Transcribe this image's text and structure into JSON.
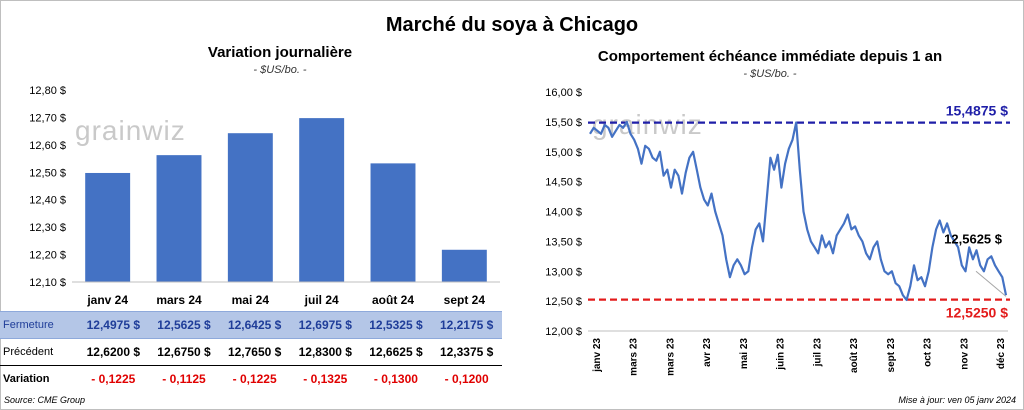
{
  "title": "Marché du soya à Chicago",
  "colors": {
    "bar": "#4472c4",
    "line": "#4472c4",
    "high": "#1f1fa8",
    "low": "#e31b1b"
  },
  "chart_data": [
    {
      "type": "bar",
      "title": "Variation journalière",
      "subtitle": "- $US/bo. -",
      "categories": [
        "janv 24",
        "mars 24",
        "mai 24",
        "juil 24",
        "août 24",
        "sept 24"
      ],
      "values": [
        12.4975,
        12.5625,
        12.6425,
        12.6975,
        12.5325,
        12.2175
      ],
      "ylim": [
        12.1,
        12.8
      ],
      "yticks": [
        "12,10 $",
        "12,20 $",
        "12,30 $",
        "12,40 $",
        "12,50 $",
        "12,60 $",
        "12,70 $",
        "12,80 $"
      ],
      "grid": false,
      "watermark": "grainwiz"
    },
    {
      "type": "line",
      "title": "Comportement  échéance immédiate depuis 1 an",
      "subtitle": "- $US/bo. -",
      "xticks": [
        "janv 23",
        "mars 23",
        "mars 23",
        "avr 23",
        "mai 23",
        "juin 23",
        "juil 23",
        "août 23",
        "sept 23",
        "oct 23",
        "nov 23",
        "déc 23"
      ],
      "ylim": [
        12.0,
        16.0
      ],
      "yticks": [
        "12,00 $",
        "12,50 $",
        "13,00 $",
        "13,50 $",
        "14,00 $",
        "14,50 $",
        "15,00 $",
        "15,50 $",
        "16,00 $"
      ],
      "values": [
        15.3,
        15.4,
        15.35,
        15.3,
        15.45,
        15.4,
        15.25,
        15.35,
        15.45,
        15.4,
        15.5,
        15.3,
        15.2,
        15.05,
        14.8,
        15.1,
        15.05,
        14.9,
        14.85,
        15.0,
        14.6,
        14.7,
        14.4,
        14.7,
        14.6,
        14.3,
        14.65,
        14.9,
        15.0,
        14.7,
        14.4,
        14.2,
        14.1,
        14.3,
        14.0,
        13.8,
        13.6,
        13.2,
        12.9,
        13.1,
        13.2,
        13.1,
        12.95,
        13.0,
        13.4,
        13.7,
        13.8,
        13.5,
        14.2,
        14.9,
        14.7,
        14.95,
        14.4,
        14.8,
        15.05,
        15.2,
        15.49,
        14.7,
        14.0,
        13.7,
        13.5,
        13.4,
        13.3,
        13.6,
        13.4,
        13.5,
        13.3,
        13.6,
        13.7,
        13.8,
        13.95,
        13.7,
        13.75,
        13.6,
        13.5,
        13.3,
        13.2,
        13.4,
        13.5,
        13.2,
        13.0,
        12.95,
        13.0,
        12.8,
        12.75,
        12.6,
        12.52,
        12.75,
        13.1,
        12.85,
        12.9,
        12.75,
        13.0,
        13.4,
        13.7,
        13.85,
        13.65,
        13.8,
        13.6,
        13.5,
        13.4,
        13.1,
        13.0,
        13.4,
        13.2,
        13.35,
        13.1,
        13.0,
        13.2,
        13.25,
        13.1,
        13.0,
        12.9,
        12.6
      ],
      "high": {
        "value": 15.4875,
        "label": "15,4875 $"
      },
      "low": {
        "value": 12.525,
        "label": "12,5250 $"
      },
      "last": {
        "value": 12.5625,
        "label": "12,5625 $"
      },
      "grid": false,
      "watermark": "grainwiz"
    }
  ],
  "table": {
    "rows": [
      {
        "label": "Fermeture",
        "values": [
          "12,4975  $",
          "12,5625  $",
          "12,6425  $",
          "12,6975  $",
          "12,5325  $",
          "12,2175  $"
        ]
      },
      {
        "label": "Précédent",
        "values": [
          "12,6200  $",
          "12,6750  $",
          "12,7650  $",
          "12,8300  $",
          "12,6625  $",
          "12,3375  $"
        ]
      },
      {
        "label": "Variation",
        "values": [
          "- 0,1225",
          "- 0,1125",
          "- 0,1225",
          "- 0,1325",
          "- 0,1300",
          "- 0,1200"
        ]
      }
    ]
  },
  "footer": {
    "source": "Source: CME Group",
    "updated": "Mise à jour: ven 05 janv 2024"
  }
}
